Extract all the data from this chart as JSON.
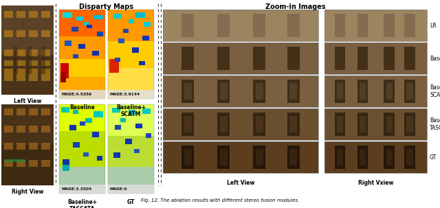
{
  "fig_width": 6.4,
  "fig_height": 3.03,
  "dpi": 100,
  "bg_color": "#ffffff",
  "title_disparity": "Disparty Maps",
  "title_zoomin": "Zoom-in Images",
  "caption": "Fig. 12. The ablation results with different stereo fusion modules.",
  "label_left_view": "Left View",
  "label_right_view": "Right View",
  "label_left_view_bottom": "Left View",
  "label_right_vxiew": "Right Vxiew",
  "disparity_labels_bottom": [
    "Baseline",
    "Baseline+\nSCATM",
    "Baseline+\nTASCATA",
    "GT"
  ],
  "made_labels": [
    "MADE:4.5359",
    "MADE:3.9144",
    "MADE:3.3504",
    "MADE:0"
  ],
  "row_labels": [
    "LR",
    "Baseline",
    "Baseline+\nSCATM",
    "Baseline+\nTASCATA",
    "GT"
  ],
  "text_color": "#000000",
  "fontsize_title": 7.0,
  "fontsize_label": 5.5,
  "fontsize_caption": 5.0,
  "fontsize_made": 4.2,
  "fontsize_rowlabel": 5.5,
  "photo_left_top_color": "#5C4220",
  "photo_left_bottom_color": "#4A3218",
  "photo_right_color": "#4A3218",
  "window_color": "#C8901A",
  "zoom_colors_left": [
    "#8B7355",
    "#7A6040",
    "#7A6040",
    "#6B5030",
    "#5C3E1E"
  ],
  "zoom_colors_right": [
    "#8B7355",
    "#7A6040",
    "#7A6040",
    "#6B5030",
    "#5C3E1E"
  ],
  "letter_color_lr": "#7A6248",
  "letter_color_baseline": "#3A2810",
  "letter_color_scatm": "#342410",
  "letter_color_tascata": "#2E1E0C",
  "letter_color_gt": "#1A1006",
  "separator_color": "#444444",
  "disp_baseline_bg": "#FF8800",
  "disp_scatm_bg": "#FF9900",
  "disp_tascata_bg": "#CCEE00",
  "disp_gt_bg": "#CCEE00",
  "made_bg": "#E8E8E8"
}
